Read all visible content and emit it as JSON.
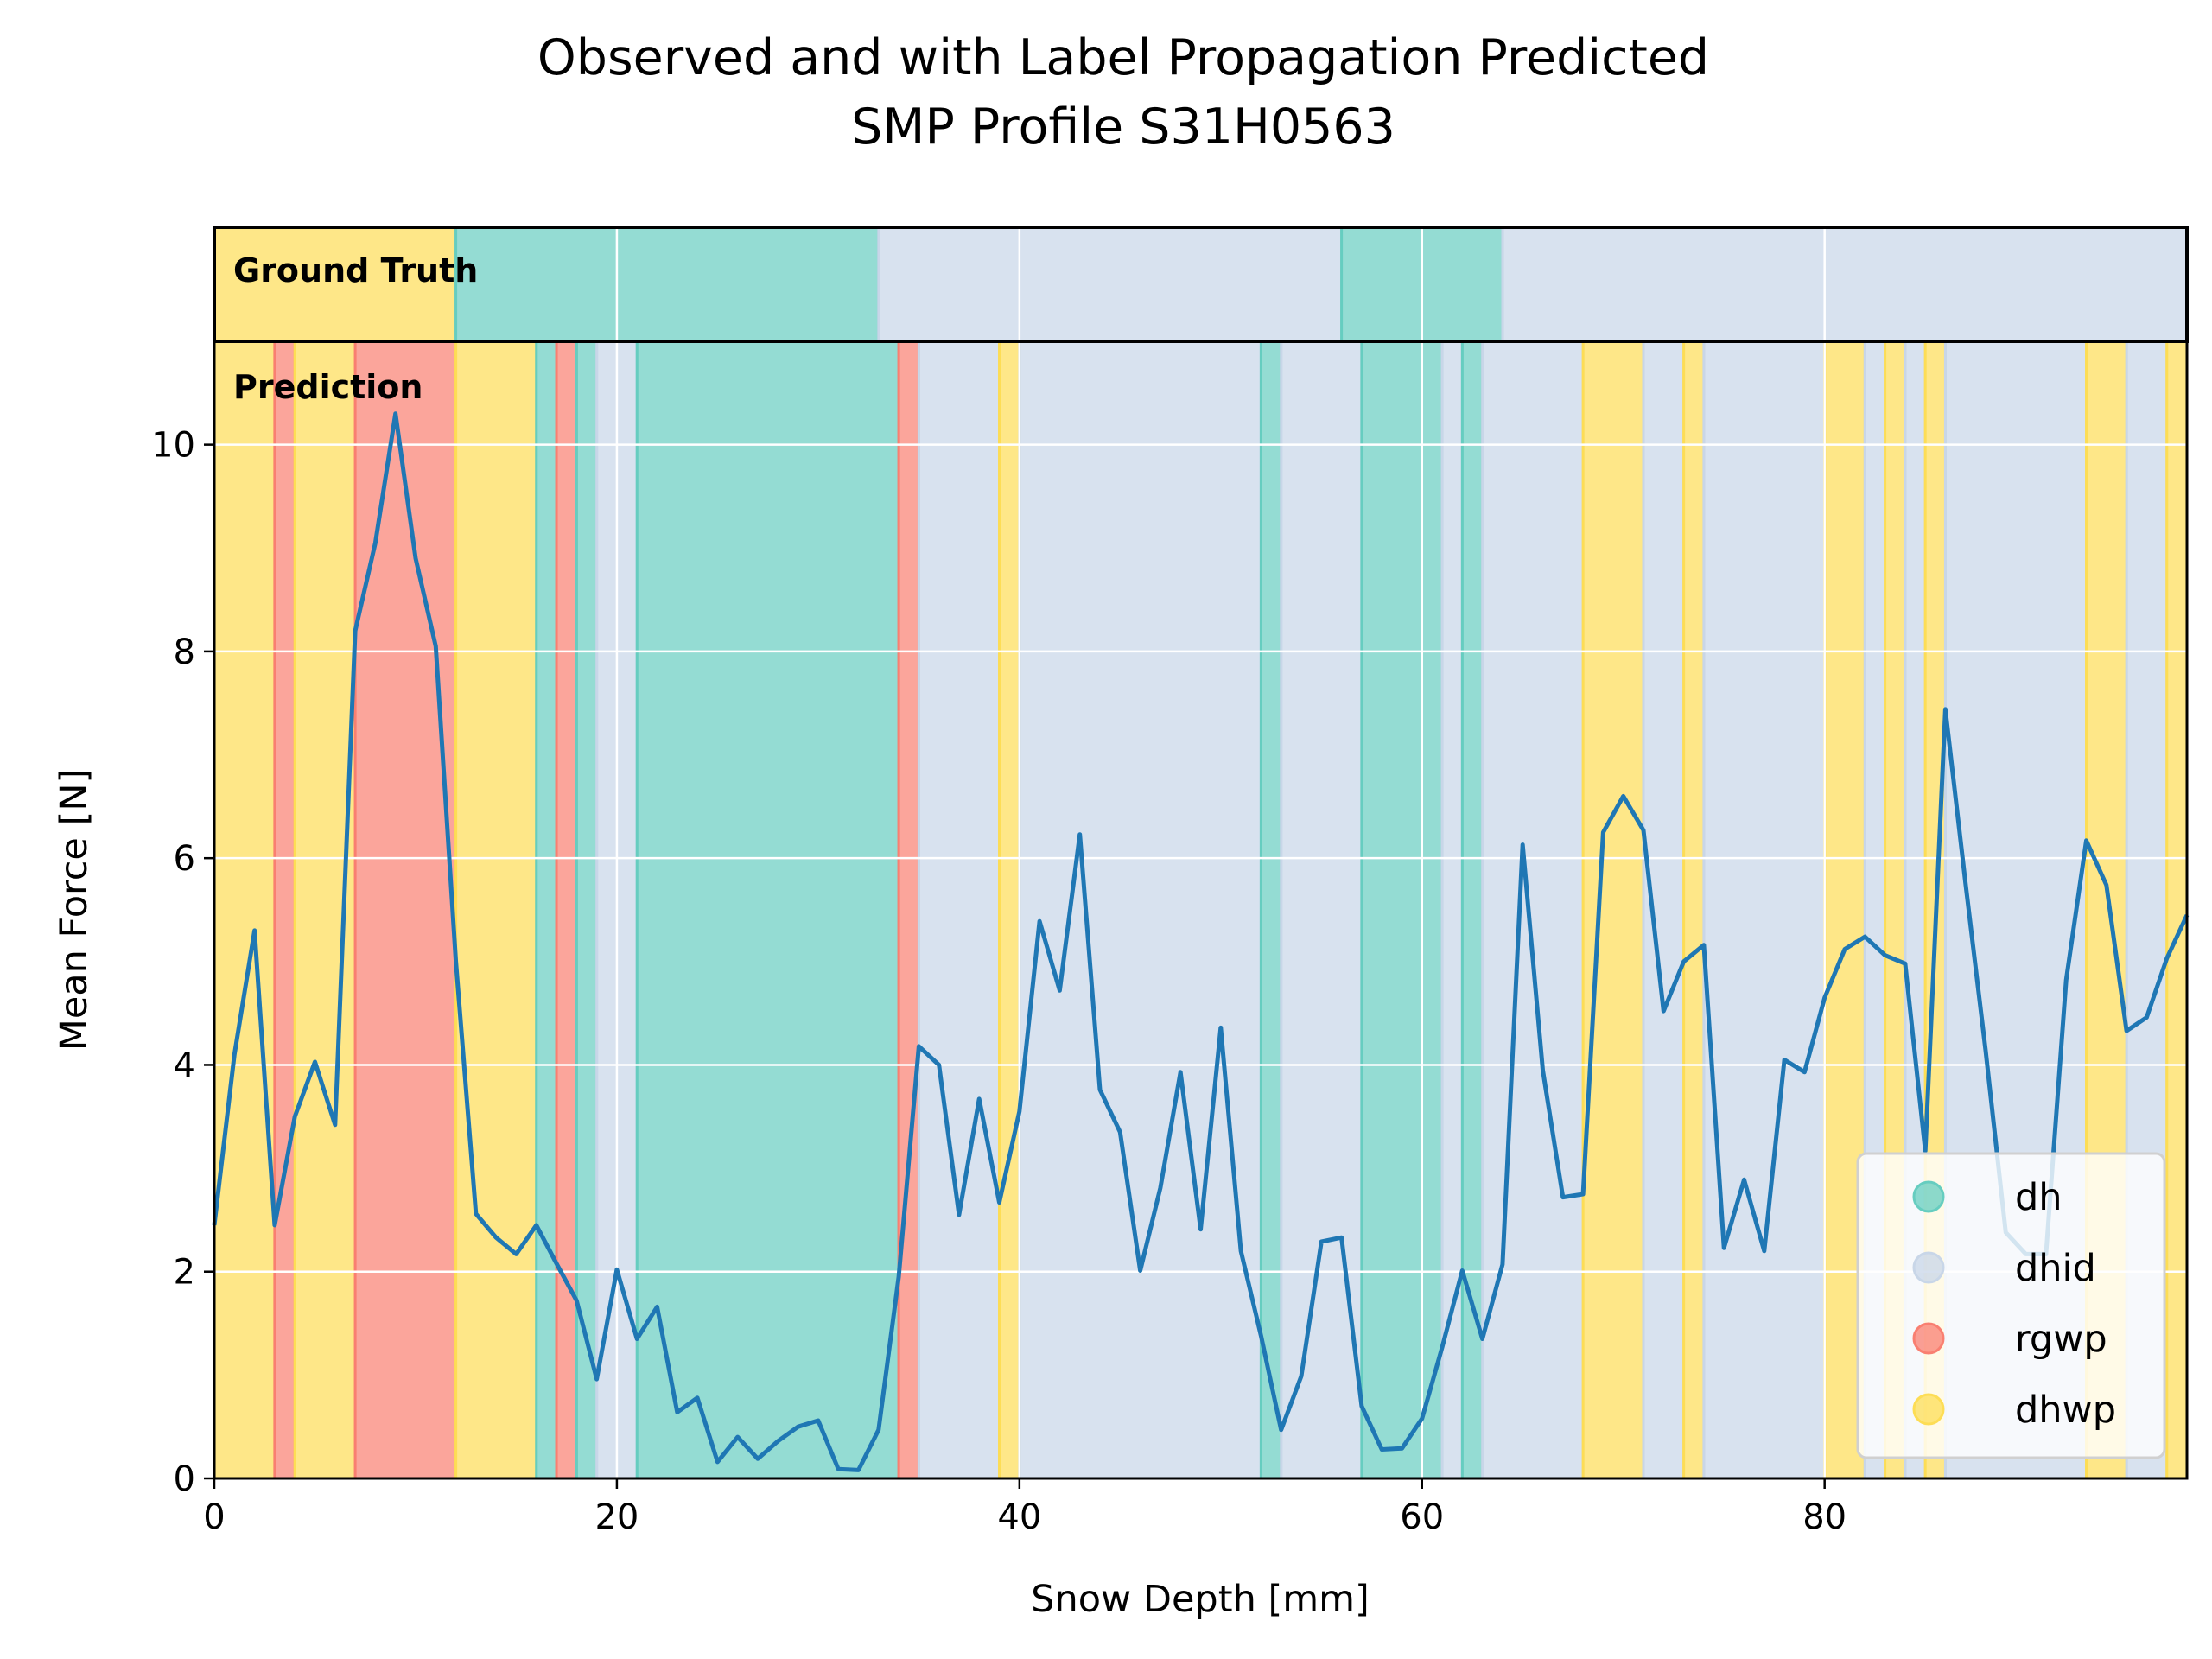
{
  "chart_data": {
    "type": "line",
    "title": "Observed and with Label Propagation Predicted",
    "subtitle": "SMP Profile S31H0563",
    "xlabel": "Snow Depth [mm]",
    "ylabel": "Mean Force [N]",
    "xlim": [
      0,
      98
    ],
    "ylim": [
      0,
      11
    ],
    "xticks": [
      "0",
      "20",
      "40",
      "60",
      "80"
    ],
    "yticks": [
      "0",
      "2",
      "4",
      "6",
      "8",
      "10"
    ],
    "grid": true,
    "legend_position": "lower-right",
    "ground_truth_label": "Ground Truth",
    "prediction_label": "Prediction",
    "class_colors": {
      "dh": "#66cdc0",
      "dhid": "#c8d6e8",
      "rgwp": "#f97f71",
      "dhwp": "#fddd55"
    },
    "legend": [
      {
        "label": "dh",
        "color": "#66cdc0"
      },
      {
        "label": "dhid",
        "color": "#c8d6e8"
      },
      {
        "label": "rgwp",
        "color": "#f97f71"
      },
      {
        "label": "dhwp",
        "color": "#fddd55"
      }
    ],
    "line_color": "#1f77b4",
    "ground_truth": [
      {
        "start": 0,
        "end": 12,
        "class": "dhwp"
      },
      {
        "start": 12,
        "end": 33,
        "class": "dh"
      },
      {
        "start": 33,
        "end": 56,
        "class": "dhid"
      },
      {
        "start": 56,
        "end": 64,
        "class": "dh"
      },
      {
        "start": 64,
        "end": 98,
        "class": "dhid"
      }
    ],
    "prediction": [
      {
        "start": 0,
        "end": 3,
        "class": "dhwp"
      },
      {
        "start": 3,
        "end": 4,
        "class": "rgwp"
      },
      {
        "start": 4,
        "end": 7,
        "class": "dhwp"
      },
      {
        "start": 7,
        "end": 12,
        "class": "rgwp"
      },
      {
        "start": 12,
        "end": 16,
        "class": "dhwp"
      },
      {
        "start": 16,
        "end": 17,
        "class": "dh"
      },
      {
        "start": 17,
        "end": 18,
        "class": "rgwp"
      },
      {
        "start": 18,
        "end": 19,
        "class": "dh"
      },
      {
        "start": 19,
        "end": 21,
        "class": "dhid"
      },
      {
        "start": 21,
        "end": 34,
        "class": "dh"
      },
      {
        "start": 34,
        "end": 35,
        "class": "rgwp"
      },
      {
        "start": 35,
        "end": 39,
        "class": "dhid"
      },
      {
        "start": 39,
        "end": 40,
        "class": "dhwp"
      },
      {
        "start": 40,
        "end": 52,
        "class": "dhid"
      },
      {
        "start": 52,
        "end": 53,
        "class": "dh"
      },
      {
        "start": 53,
        "end": 57,
        "class": "dhid"
      },
      {
        "start": 57,
        "end": 61,
        "class": "dh"
      },
      {
        "start": 61,
        "end": 62,
        "class": "dhid"
      },
      {
        "start": 62,
        "end": 63,
        "class": "dh"
      },
      {
        "start": 63,
        "end": 68,
        "class": "dhid"
      },
      {
        "start": 68,
        "end": 71,
        "class": "dhwp"
      },
      {
        "start": 71,
        "end": 73,
        "class": "dhid"
      },
      {
        "start": 73,
        "end": 74,
        "class": "dhwp"
      },
      {
        "start": 74,
        "end": 80,
        "class": "dhid"
      },
      {
        "start": 80,
        "end": 82,
        "class": "dhwp"
      },
      {
        "start": 82,
        "end": 83,
        "class": "dhid"
      },
      {
        "start": 83,
        "end": 84,
        "class": "dhwp"
      },
      {
        "start": 84,
        "end": 85,
        "class": "dhid"
      },
      {
        "start": 85,
        "end": 86,
        "class": "dhwp"
      },
      {
        "start": 86,
        "end": 93,
        "class": "dhid"
      },
      {
        "start": 93,
        "end": 95,
        "class": "dhwp"
      },
      {
        "start": 95,
        "end": 97,
        "class": "dhid"
      },
      {
        "start": 97,
        "end": 98,
        "class": "dhwp"
      }
    ],
    "x": [
      0,
      1,
      2,
      3,
      4,
      5,
      6,
      7,
      8,
      9,
      10,
      11,
      12,
      13,
      14,
      15,
      16,
      17,
      18,
      19,
      20,
      21,
      22,
      23,
      24,
      25,
      26,
      27,
      28,
      29,
      30,
      31,
      32,
      33,
      34,
      35,
      36,
      37,
      38,
      39,
      40,
      41,
      42,
      43,
      44,
      45,
      46,
      47,
      48,
      49,
      50,
      51,
      52,
      53,
      54,
      55,
      56,
      57,
      58,
      59,
      60,
      61,
      62,
      63,
      64,
      65,
      66,
      67,
      68,
      69,
      70,
      71,
      72,
      73,
      74,
      75,
      76,
      77,
      78,
      79,
      80,
      81,
      82,
      83,
      84,
      85,
      86,
      87,
      88,
      89,
      90,
      91,
      92,
      93,
      94,
      95,
      96,
      97,
      98
    ],
    "y": [
      2.45,
      4.1,
      5.3,
      2.45,
      3.5,
      4.03,
      3.42,
      8.2,
      9.05,
      10.3,
      8.9,
      8.05,
      5.0,
      2.56,
      2.33,
      2.17,
      2.45,
      2.08,
      1.72,
      0.96,
      2.02,
      1.35,
      1.66,
      0.64,
      0.78,
      0.16,
      0.4,
      0.19,
      0.36,
      0.5,
      0.56,
      0.09,
      0.08,
      0.47,
      1.95,
      4.18,
      4.0,
      2.55,
      3.67,
      2.67,
      3.55,
      5.39,
      4.72,
      6.23,
      3.76,
      3.35,
      2.01,
      2.81,
      3.93,
      2.41,
      4.36,
      2.2,
      1.38,
      0.47,
      0.99,
      2.29,
      2.33,
      0.7,
      0.28,
      0.29,
      0.58,
      1.27,
      2.01,
      1.35,
      2.07,
      6.13,
      3.95,
      2.72,
      2.75,
      6.25,
      6.6,
      6.27,
      4.52,
      5.0,
      5.16,
      2.23,
      2.89,
      2.2,
      4.05,
      3.93,
      4.65,
      5.12,
      5.24,
      5.06,
      4.98,
      3.17,
      7.44,
      5.76,
      4.14,
      2.38,
      2.17,
      2.17,
      4.82,
      6.17,
      5.74,
      4.33,
      4.46,
      5.03,
      5.45
    ]
  }
}
